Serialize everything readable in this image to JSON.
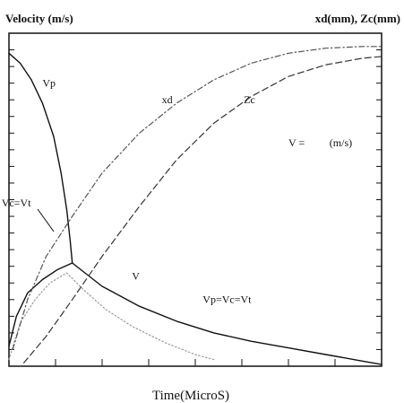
{
  "chart_data": {
    "type": "line",
    "xlabel": "Time(MicroS)",
    "ylabel_left": "Velocity (m/s)",
    "ylabel_right": "xd(mm), Zc(mm)",
    "annotations": {
      "v_equals": "V =",
      "v_units": "(m/s)",
      "vc_vt": "Vc=Vt",
      "vp_vc_vt": "Vp=Vc=Vt"
    },
    "x_range": [
      0,
      1
    ],
    "y_range": [
      0,
      1
    ],
    "grid": false,
    "series": [
      {
        "name": "Vp",
        "style": "solid",
        "color": "#111111",
        "x": [
          0,
          0.03,
          0.06,
          0.09,
          0.12,
          0.14,
          0.155,
          0.165,
          0.17
        ],
        "y": [
          0.94,
          0.91,
          0.86,
          0.79,
          0.69,
          0.58,
          0.47,
          0.37,
          0.31
        ]
      },
      {
        "name": "Vp=Vc=Vt",
        "style": "solid",
        "color": "#111111",
        "x": [
          0.17,
          0.25,
          0.35,
          0.45,
          0.55,
          0.65,
          0.75,
          0.85,
          0.95,
          1.0
        ],
        "y": [
          0.31,
          0.24,
          0.18,
          0.135,
          0.1,
          0.075,
          0.055,
          0.035,
          0.015,
          0.005
        ]
      },
      {
        "name": "Vc=Vt",
        "style": "solid",
        "color": "#111111",
        "x": [
          0,
          0.02,
          0.05,
          0.09,
          0.13,
          0.17
        ],
        "y": [
          0.06,
          0.15,
          0.22,
          0.26,
          0.29,
          0.31
        ]
      },
      {
        "name": "V",
        "style": "dotted",
        "color": "#9a9a9a",
        "x": [
          0,
          0.03,
          0.07,
          0.11,
          0.155,
          0.2,
          0.26,
          0.33,
          0.42,
          0.5,
          0.55
        ],
        "y": [
          0.02,
          0.13,
          0.2,
          0.25,
          0.28,
          0.23,
          0.17,
          0.12,
          0.07,
          0.035,
          0.02
        ]
      },
      {
        "name": "xd",
        "style": "dash-dot",
        "color": "#555555",
        "x": [
          0.01,
          0.05,
          0.1,
          0.17,
          0.25,
          0.35,
          0.45,
          0.55,
          0.65,
          0.75,
          0.85,
          0.95,
          1.0
        ],
        "y": [
          0.05,
          0.2,
          0.33,
          0.45,
          0.58,
          0.7,
          0.79,
          0.86,
          0.91,
          0.94,
          0.955,
          0.96,
          0.96
        ]
      },
      {
        "name": "Zc",
        "style": "dashed",
        "color": "#333333",
        "x": [
          0.04,
          0.1,
          0.17,
          0.25,
          0.35,
          0.45,
          0.55,
          0.65,
          0.75,
          0.85,
          0.95,
          1.0
        ],
        "y": [
          0.01,
          0.09,
          0.2,
          0.33,
          0.48,
          0.62,
          0.73,
          0.81,
          0.87,
          0.905,
          0.925,
          0.93
        ]
      }
    ],
    "curve_labels": [
      {
        "text": "Vp",
        "x": 0.09,
        "y": 0.84
      },
      {
        "text": "xd",
        "x": 0.41,
        "y": 0.79
      },
      {
        "text": "Zc",
        "x": 0.63,
        "y": 0.79
      },
      {
        "text": "V",
        "x": 0.33,
        "y": 0.26
      },
      {
        "text": "Vp=Vc=Vt",
        "x": 0.52,
        "y": 0.19
      },
      {
        "text": "Vc=Vt",
        "x": -0.02,
        "y": 0.48
      },
      {
        "text": "V =",
        "x": 0.75,
        "y": 0.66
      },
      {
        "text": "(m/s)",
        "x": 0.86,
        "y": 0.66
      }
    ]
  }
}
